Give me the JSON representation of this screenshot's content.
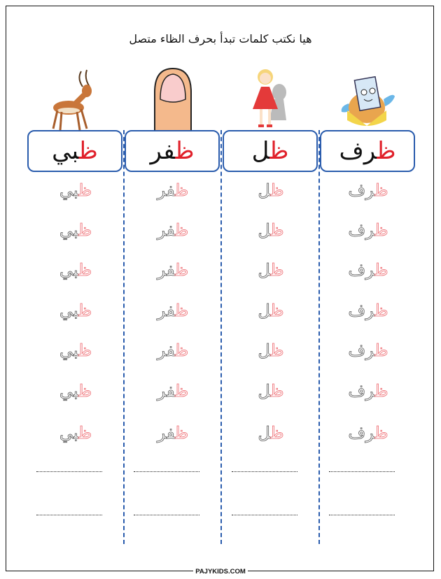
{
  "title": "هيا نكتب كلمات تبدأ بحرف الظاء متصل",
  "columns": [
    {
      "word_first": "ظ",
      "word_rest": "بي",
      "image": "gazelle"
    },
    {
      "word_first": "ظ",
      "word_rest": "فر",
      "image": "fingernail"
    },
    {
      "word_first": "ظ",
      "word_rest": "ل",
      "image": "doll-shadow"
    },
    {
      "word_first": "ظ",
      "word_rest": "رف",
      "image": "envelope"
    }
  ],
  "colors": {
    "accent_red": "#e0202a",
    "box_border": "#2a5cad"
  },
  "footer": "PAJYKIDS.COM"
}
